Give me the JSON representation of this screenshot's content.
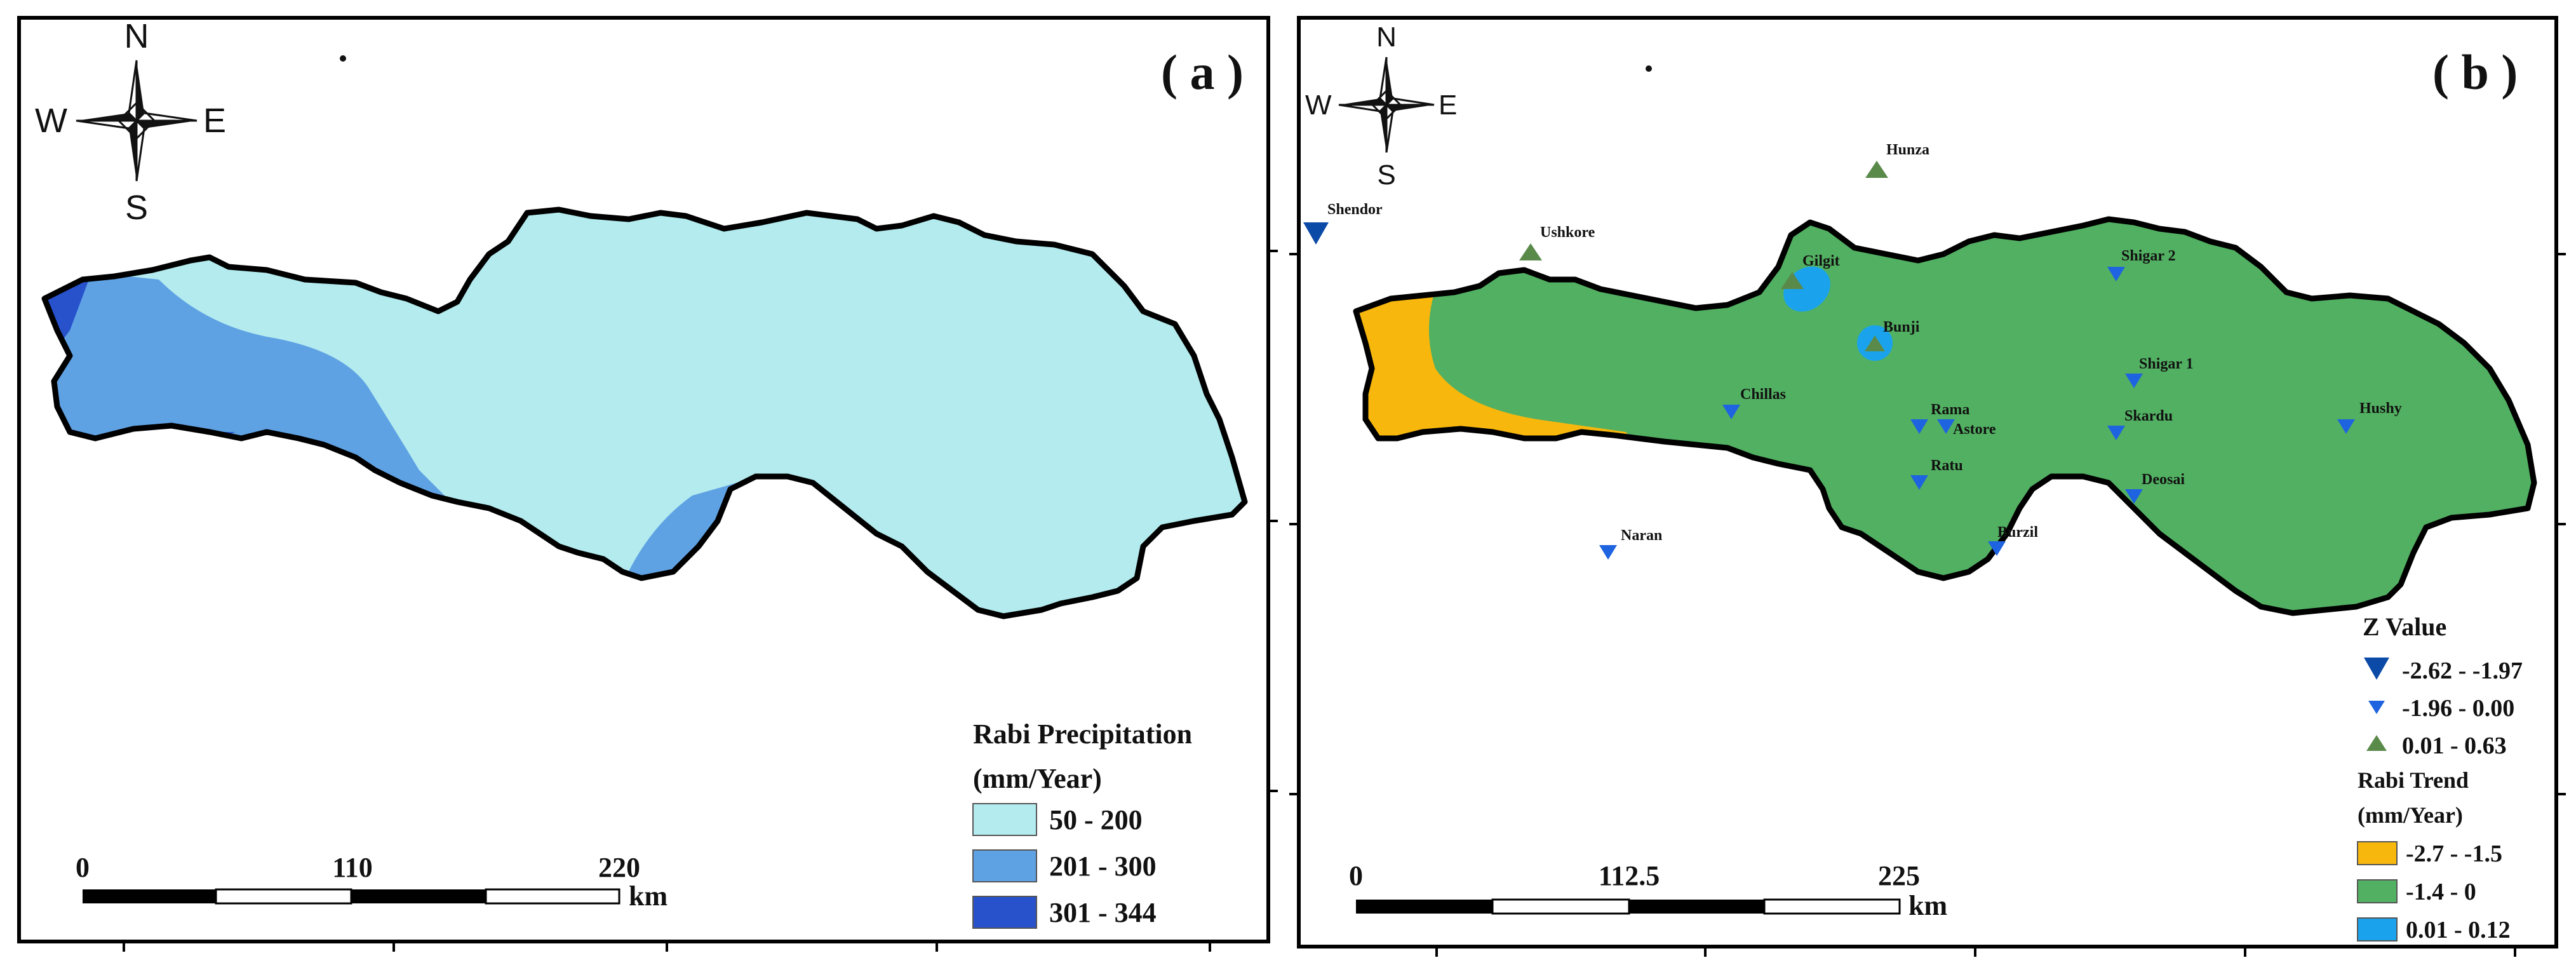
{
  "panels": {
    "a": {
      "label": "( a )",
      "compass": {
        "n": "N",
        "s": "S",
        "e": "E",
        "w": "W"
      },
      "legend": {
        "title_line1": "Rabi Precipitation",
        "title_line2": "(mm/Year)",
        "items": [
          {
            "label": "50 - 200",
            "color": "#b3ebee"
          },
          {
            "label": "201 - 300",
            "color": "#5fa2e4"
          },
          {
            "label": "301 - 344",
            "color": "#2752cc"
          }
        ]
      },
      "scale": {
        "t0": "0",
        "t1": "110",
        "t2": "220",
        "unit": "km"
      }
    },
    "b": {
      "label": "( b )",
      "compass": {
        "n": "N",
        "s": "S",
        "e": "E",
        "w": "W"
      },
      "zlegend": {
        "title": "Z Value",
        "items": [
          {
            "label": "-2.62 - -1.97",
            "color": "#0b4aa6",
            "symbol": "triangle-down-large"
          },
          {
            "label": "-1.96 - 0.00",
            "color": "#1e63e0",
            "symbol": "triangle-down-small"
          },
          {
            "label": "0.01 - 0.63",
            "color": "#5a8a4a",
            "symbol": "triangle-up"
          }
        ]
      },
      "trendlegend": {
        "title_line1": "Rabi Trend",
        "title_line2": "(mm/Year)",
        "items": [
          {
            "label": "-2.7 - -1.5",
            "color": "#f7b70d"
          },
          {
            "label": "-1.4 - 0",
            "color": "#52b062"
          },
          {
            "label": "0.01 - 0.12",
            "color": "#1aa3ec"
          }
        ]
      },
      "scale": {
        "t0": "0",
        "t1": "112.5",
        "t2": "225",
        "unit": "km"
      },
      "stations": [
        {
          "name": "Shendor",
          "class": "large"
        },
        {
          "name": "Ushkore",
          "class": "up"
        },
        {
          "name": "Hunza",
          "class": "up"
        },
        {
          "name": "Gilgit",
          "class": "up"
        },
        {
          "name": "Bunji",
          "class": "up"
        },
        {
          "name": "Shigar 2",
          "class": "down"
        },
        {
          "name": "Shigar 1",
          "class": "down"
        },
        {
          "name": "Chillas",
          "class": "down"
        },
        {
          "name": "Rama",
          "class": "down"
        },
        {
          "name": "Astore",
          "class": "down"
        },
        {
          "name": "Skardu",
          "class": "down"
        },
        {
          "name": "Hushy",
          "class": "down"
        },
        {
          "name": "Ratu",
          "class": "down"
        },
        {
          "name": "Deosai",
          "class": "down"
        },
        {
          "name": "Burzil",
          "class": "down"
        },
        {
          "name": "Naran",
          "class": "down"
        }
      ]
    }
  }
}
